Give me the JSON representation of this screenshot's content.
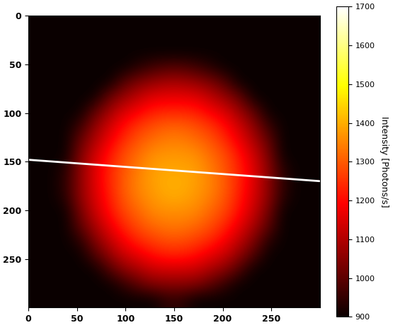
{
  "chart_data": {
    "type": "heatmap",
    "color": "hot",
    "xlim": [
      0,
      300
    ],
    "ylim": [
      300,
      0
    ],
    "xticks": [
      0,
      50,
      100,
      150,
      200,
      250
    ],
    "yticks": [
      0,
      50,
      100,
      150,
      200,
      250
    ],
    "colorbar_label": "Intensity [Photons/s]",
    "colorbar_range": [
      900,
      1700
    ],
    "colorbar_ticks": [
      900,
      1000,
      1100,
      1200,
      1300,
      1400,
      1500,
      1600,
      1700
    ],
    "series": [
      {
        "type": "line",
        "color": "#ffffff",
        "x": [
          0,
          300
        ],
        "values": [
          148,
          170
        ]
      }
    ],
    "cells": [
      [
        900,
        900,
        900,
        900,
        900,
        900,
        900,
        900,
        900,
        900,
        900,
        900,
        900,
        900,
        900,
        900,
        900,
        900,
        900,
        900
      ],
      [
        900,
        900,
        900,
        900,
        900,
        900,
        900,
        900,
        900,
        900,
        900,
        900,
        900,
        900,
        900,
        900,
        900,
        900,
        900,
        900
      ],
      [
        900,
        900,
        900,
        900,
        900,
        900,
        900,
        900,
        900,
        900,
        900,
        900,
        900,
        900,
        900,
        900,
        900,
        900,
        900,
        900
      ],
      [
        900,
        900,
        900,
        900,
        900,
        900,
        900,
        930,
        960,
        980,
        980,
        960,
        930,
        900,
        900,
        900,
        900,
        900,
        900,
        900
      ],
      [
        900,
        900,
        900,
        900,
        900,
        900,
        980,
        1030,
        1060,
        1080,
        1080,
        1060,
        1030,
        980,
        900,
        900,
        900,
        900,
        900,
        900
      ],
      [
        900,
        900,
        900,
        900,
        900,
        1000,
        1060,
        1110,
        1150,
        1160,
        1160,
        1150,
        1110,
        1060,
        1000,
        900,
        900,
        900,
        900,
        900
      ],
      [
        900,
        900,
        900,
        900,
        990,
        1070,
        1140,
        1180,
        1220,
        1230,
        1230,
        1220,
        1180,
        1140,
        1070,
        990,
        900,
        900,
        900,
        900
      ],
      [
        900,
        900,
        900,
        950,
        1050,
        1130,
        1200,
        1250,
        1280,
        1300,
        1300,
        1280,
        1250,
        1200,
        1130,
        1050,
        950,
        900,
        900,
        900
      ],
      [
        900,
        900,
        900,
        1000,
        1090,
        1170,
        1240,
        1290,
        1320,
        1340,
        1340,
        1320,
        1290,
        1240,
        1170,
        1090,
        1000,
        900,
        900,
        900
      ],
      [
        900,
        900,
        900,
        1030,
        1130,
        1210,
        1280,
        1320,
        1360,
        1370,
        1370,
        1360,
        1320,
        1280,
        1210,
        1130,
        1030,
        900,
        900,
        900
      ],
      [
        900,
        900,
        930,
        1050,
        1150,
        1230,
        1290,
        1340,
        1380,
        1390,
        1390,
        1380,
        1340,
        1290,
        1230,
        1150,
        1050,
        930,
        900,
        900
      ],
      [
        900,
        900,
        940,
        1050,
        1150,
        1230,
        1300,
        1350,
        1380,
        1400,
        1400,
        1380,
        1350,
        1300,
        1230,
        1150,
        1050,
        940,
        900,
        900
      ],
      [
        900,
        900,
        930,
        1050,
        1140,
        1220,
        1290,
        1340,
        1370,
        1390,
        1390,
        1370,
        1340,
        1290,
        1220,
        1140,
        1050,
        930,
        900,
        900
      ],
      [
        900,
        900,
        900,
        1020,
        1120,
        1200,
        1270,
        1310,
        1350,
        1360,
        1360,
        1350,
        1310,
        1270,
        1200,
        1120,
        1020,
        900,
        900,
        900
      ],
      [
        900,
        900,
        900,
        990,
        1080,
        1160,
        1230,
        1280,
        1310,
        1330,
        1330,
        1310,
        1280,
        1230,
        1160,
        1080,
        990,
        900,
        900,
        900
      ],
      [
        900,
        900,
        900,
        930,
        1030,
        1110,
        1180,
        1230,
        1260,
        1280,
        1280,
        1260,
        1230,
        1180,
        1110,
        1030,
        930,
        900,
        900,
        900
      ],
      [
        900,
        900,
        900,
        900,
        970,
        1050,
        1120,
        1160,
        1200,
        1220,
        1220,
        1200,
        1160,
        1120,
        1050,
        970,
        900,
        900,
        900,
        900
      ],
      [
        900,
        900,
        900,
        900,
        900,
        970,
        1040,
        1080,
        1120,
        1130,
        1130,
        1120,
        1080,
        1040,
        970,
        900,
        900,
        900,
        900,
        900
      ],
      [
        900,
        900,
        900,
        900,
        900,
        900,
        940,
        990,
        1030,
        1040,
        1040,
        1030,
        990,
        940,
        900,
        900,
        900,
        900,
        900,
        900
      ],
      [
        900,
        900,
        900,
        900,
        900,
        900,
        900,
        900,
        900,
        940,
        940,
        900,
        900,
        900,
        900,
        900,
        900,
        900,
        900,
        900
      ]
    ]
  }
}
